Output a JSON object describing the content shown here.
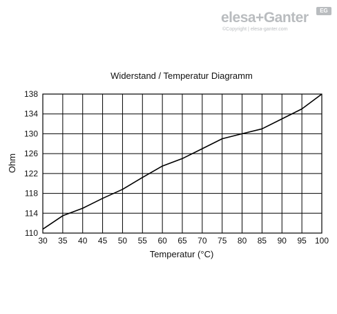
{
  "logo": {
    "brand": "elesa+Ganter",
    "badge": "EG",
    "copyright": "©Copyright | elesa-ganter.com"
  },
  "chart_data": {
    "type": "line",
    "title": "Widerstand / Temperatur Diagramm",
    "xlabel": "Temperatur (°C)",
    "ylabel": "Ohm",
    "xlim": [
      30,
      100
    ],
    "ylim": [
      110,
      138
    ],
    "x_ticks": [
      30,
      35,
      40,
      45,
      50,
      55,
      60,
      65,
      70,
      75,
      80,
      85,
      90,
      95,
      100
    ],
    "y_ticks": [
      110,
      114,
      118,
      122,
      126,
      130,
      134,
      138
    ],
    "grid": true,
    "legend": "none",
    "line_color": "#000000",
    "series": [
      {
        "x": [
          30,
          35,
          40,
          45,
          50,
          55,
          60,
          65,
          70,
          75,
          80,
          85,
          90,
          95,
          100
        ],
        "values": [
          110.8,
          113.5,
          115.0,
          117.0,
          118.8,
          121.2,
          123.5,
          125.0,
          127.0,
          129.0,
          130.0,
          131.0,
          133.0,
          135.0,
          138.0
        ]
      }
    ]
  }
}
